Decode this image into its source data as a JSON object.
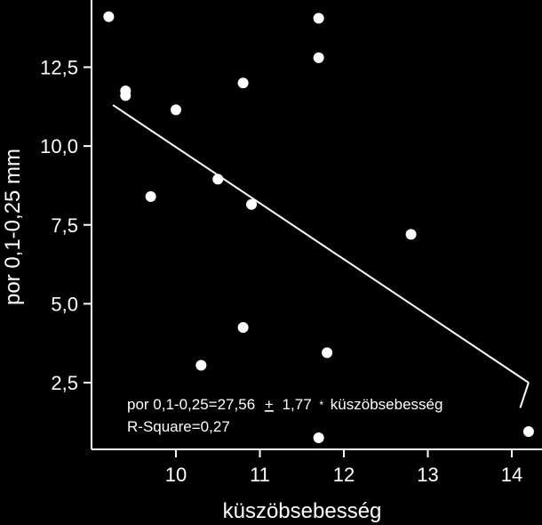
{
  "chart_data": {
    "type": "scatter",
    "title": "",
    "xlabel": "küszöbsebesség",
    "ylabel": "por 0,1-0,25 mm",
    "xlim": [
      8.9,
      14.4
    ],
    "ylim": [
      0.0,
      14.5
    ],
    "x_ticks": [
      {
        "value": 10,
        "label": "10"
      },
      {
        "value": 11,
        "label": "11"
      },
      {
        "value": 12,
        "label": "12"
      },
      {
        "value": 13,
        "label": "13"
      },
      {
        "value": 14,
        "label": "14"
      }
    ],
    "y_ticks": [
      {
        "value": 2.5,
        "label": "2,5"
      },
      {
        "value": 5.0,
        "label": "5,0"
      },
      {
        "value": 7.5,
        "label": "7,5"
      },
      {
        "value": 10.0,
        "label": "10,0"
      },
      {
        "value": 12.5,
        "label": "12,5"
      }
    ],
    "points": [
      {
        "x": 9.2,
        "y": 14.1
      },
      {
        "x": 11.7,
        "y": 14.05
      },
      {
        "x": 11.7,
        "y": 12.8
      },
      {
        "x": 10.8,
        "y": 12.0
      },
      {
        "x": 9.4,
        "y": 11.75
      },
      {
        "x": 9.4,
        "y": 11.6
      },
      {
        "x": 10.0,
        "y": 11.15
      },
      {
        "x": 10.5,
        "y": 8.95
      },
      {
        "x": 9.7,
        "y": 8.4
      },
      {
        "x": 10.9,
        "y": 8.15
      },
      {
        "x": 12.8,
        "y": 7.2
      },
      {
        "x": 10.8,
        "y": 4.25
      },
      {
        "x": 11.8,
        "y": 3.45
      },
      {
        "x": 10.3,
        "y": 3.05
      },
      {
        "x": 11.7,
        "y": 0.75
      },
      {
        "x": 14.2,
        "y": 0.95
      }
    ],
    "fit_line": {
      "x": [
        9.25,
        14.2
      ],
      "y": [
        11.3,
        2.5
      ]
    },
    "fit_end_tick": {
      "x": [
        14.2,
        14.1
      ],
      "y": [
        2.5,
        1.7
      ]
    },
    "annotation": {
      "equation_part1": "por 0,1-0,25=27,56",
      "plus_minus": "+",
      "equation_part2": "1,77",
      "multiply": "*",
      "equation_part3": "küszöbsebesség",
      "rsquare": "R-Square=0,27"
    },
    "grid": false,
    "legend": "none"
  }
}
